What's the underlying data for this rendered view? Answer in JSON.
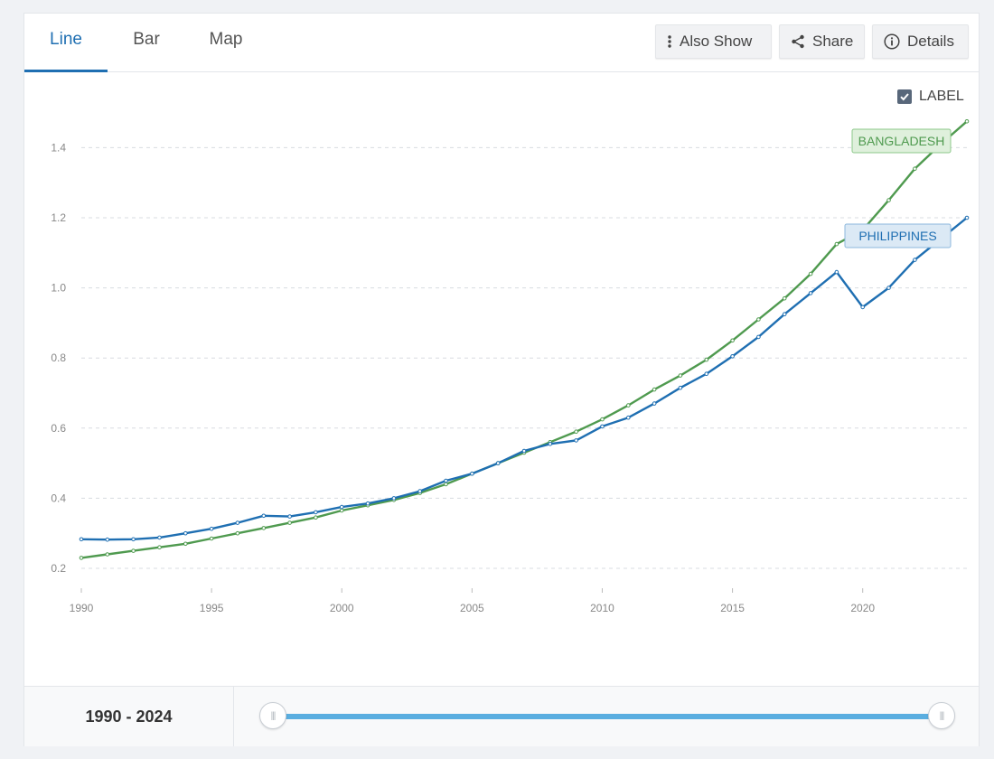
{
  "tabs": [
    {
      "label": "Line",
      "active": true
    },
    {
      "label": "Bar",
      "active": false
    },
    {
      "label": "Map",
      "active": false
    }
  ],
  "toolbar": {
    "also_show": "Also Show",
    "share": "Share",
    "details": "Details"
  },
  "label_toggle": {
    "text": "LABEL",
    "checked": true
  },
  "footer": {
    "range_text": "1990 - 2024",
    "slider": {
      "min": 1990,
      "max": 2024,
      "from": 1990,
      "to": 2024
    }
  },
  "colors": {
    "accent": "#1f6fb2",
    "philippines": "#1f6fb2",
    "bangladesh": "#4f9a4f"
  },
  "chart_data": {
    "type": "line",
    "title": "",
    "xlabel": "",
    "ylabel": "",
    "xlim": [
      1990,
      2024
    ],
    "ylim": [
      0.2,
      1.5
    ],
    "xticks": [
      1990,
      1995,
      2000,
      2005,
      2010,
      2015,
      2020
    ],
    "yticks": [
      0.2,
      0.4,
      0.6,
      0.8,
      1.0,
      1.2,
      1.4
    ],
    "ytick_labels": [
      "0.2",
      "0.4",
      "0.6",
      "0.8",
      "1.0",
      "1.2",
      "1.4"
    ],
    "grid": "horizontal dashed",
    "x": [
      1990,
      1991,
      1992,
      1993,
      1994,
      1995,
      1996,
      1997,
      1998,
      1999,
      2000,
      2001,
      2002,
      2003,
      2004,
      2005,
      2006,
      2007,
      2008,
      2009,
      2010,
      2011,
      2012,
      2013,
      2014,
      2015,
      2016,
      2017,
      2018,
      2019,
      2020,
      2021,
      2022,
      2023,
      2024
    ],
    "series": [
      {
        "name": "BANGLADESH",
        "color": "#4f9a4f",
        "values": [
          0.23,
          0.24,
          0.25,
          0.26,
          0.27,
          0.285,
          0.3,
          0.315,
          0.33,
          0.345,
          0.365,
          0.38,
          0.395,
          0.415,
          0.44,
          0.47,
          0.5,
          0.53,
          0.56,
          0.59,
          0.625,
          0.665,
          0.71,
          0.75,
          0.795,
          0.85,
          0.91,
          0.97,
          1.04,
          1.125,
          1.165,
          1.25,
          1.34,
          1.41,
          1.475
        ]
      },
      {
        "name": "PHILIPPINES",
        "color": "#1f6fb2",
        "values": [
          0.283,
          0.282,
          0.283,
          0.288,
          0.3,
          0.313,
          0.33,
          0.35,
          0.348,
          0.36,
          0.375,
          0.385,
          0.4,
          0.42,
          0.45,
          0.47,
          0.5,
          0.535,
          0.555,
          0.565,
          0.605,
          0.63,
          0.67,
          0.715,
          0.755,
          0.805,
          0.86,
          0.925,
          0.985,
          1.045,
          0.945,
          1.0,
          1.08,
          1.14,
          1.2
        ]
      }
    ]
  }
}
